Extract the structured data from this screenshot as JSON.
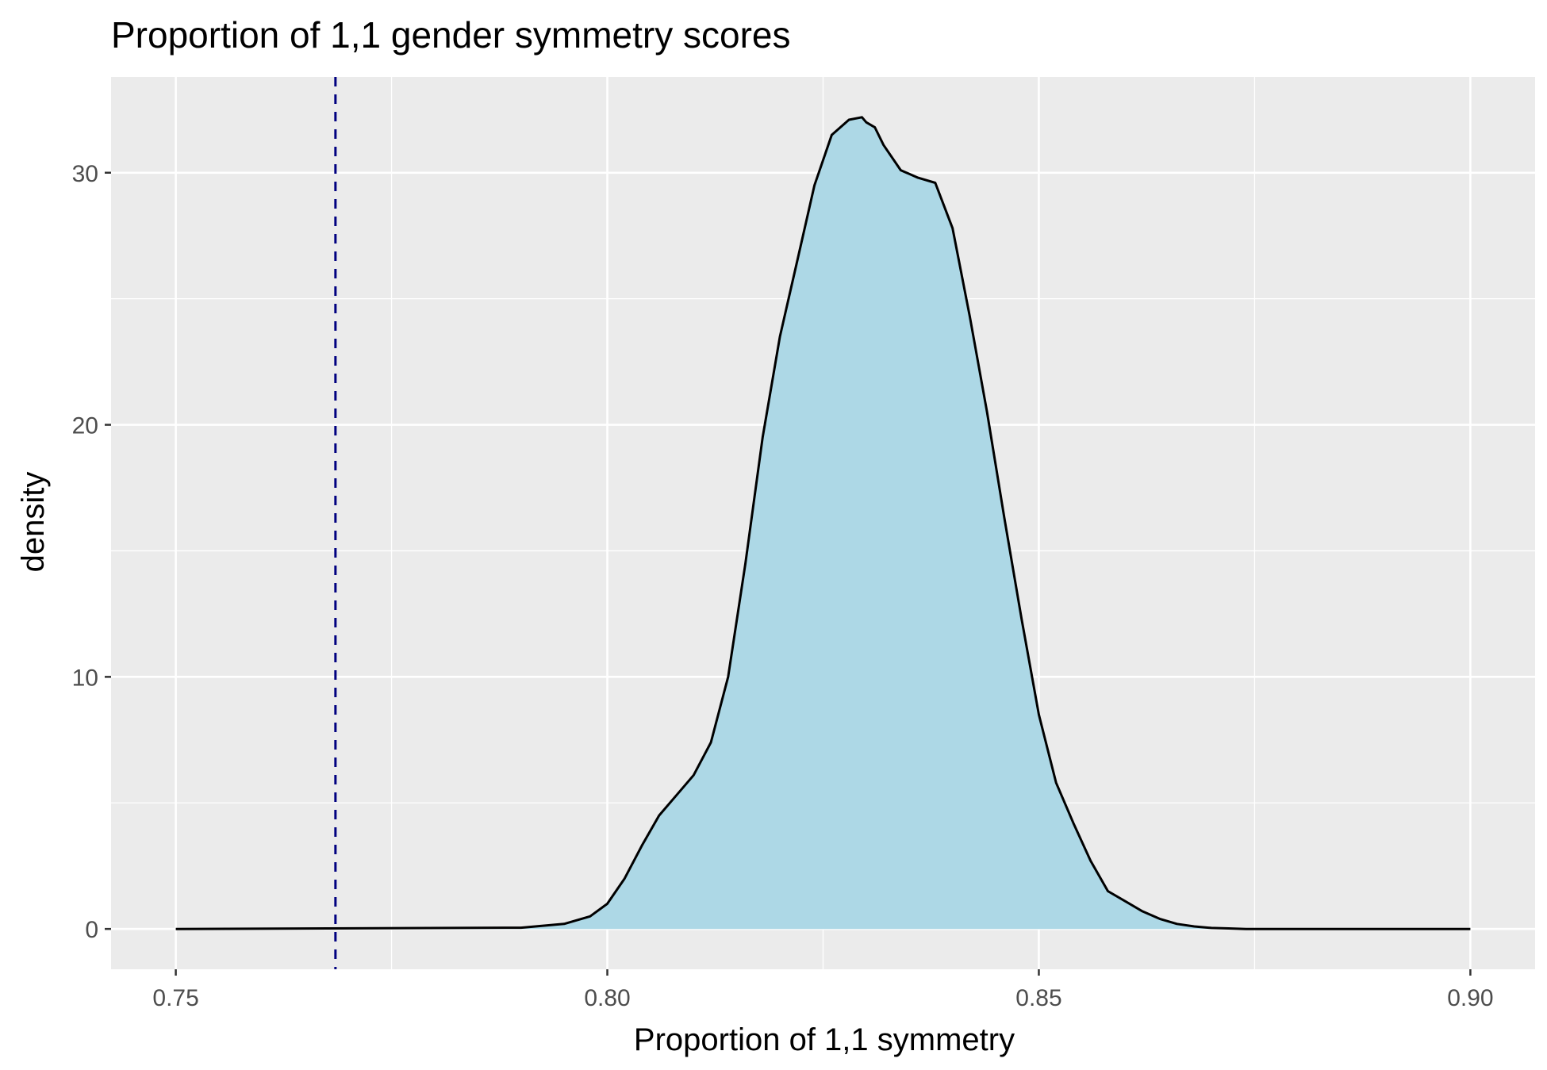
{
  "chart_data": {
    "type": "area",
    "title": "Proportion of 1,1 gender symmetry scores",
    "xlabel": "Proportion of 1,1 symmetry",
    "ylabel": "density",
    "xlim": [
      0.7425,
      0.9075
    ],
    "ylim": [
      -1.6,
      33.8
    ],
    "x_ticks": [
      0.75,
      0.8,
      0.85,
      0.9
    ],
    "x_tick_labels": [
      "0.75",
      "0.80",
      "0.85",
      "0.90"
    ],
    "y_ticks": [
      0,
      10,
      20,
      30
    ],
    "y_tick_labels": [
      "0",
      "10",
      "20",
      "30"
    ],
    "grid": true,
    "reference_line": {
      "x": 0.7685,
      "style": "dashed",
      "color": "#000080"
    },
    "fill_color": "#ADD8E6",
    "line_color": "#000000",
    "panel_background": "#EBEBEB",
    "series": [
      {
        "x": [
          0.75,
          0.79,
          0.795,
          0.798,
          0.8,
          0.802,
          0.804,
          0.806,
          0.808,
          0.81,
          0.812,
          0.814,
          0.816,
          0.818,
          0.82,
          0.822,
          0.824,
          0.826,
          0.828,
          0.8295,
          0.83,
          0.831,
          0.832,
          0.834,
          0.836,
          0.838,
          0.84,
          0.842,
          0.844,
          0.846,
          0.848,
          0.85,
          0.852,
          0.854,
          0.856,
          0.858,
          0.86,
          0.862,
          0.864,
          0.866,
          0.868,
          0.87,
          0.872,
          0.874,
          0.876,
          0.878,
          0.88,
          0.9
        ],
        "y": [
          0.0,
          0.05,
          0.2,
          0.5,
          1.0,
          2.0,
          3.3,
          4.5,
          5.3,
          6.1,
          7.4,
          10.0,
          14.5,
          19.5,
          23.5,
          26.5,
          29.5,
          31.5,
          32.1,
          32.2,
          32.0,
          31.8,
          31.1,
          30.1,
          29.8,
          29.6,
          27.8,
          24.3,
          20.5,
          16.3,
          12.3,
          8.5,
          5.8,
          4.2,
          2.7,
          1.5,
          1.1,
          0.7,
          0.4,
          0.2,
          0.1,
          0.04,
          0.02,
          0.0,
          0.0,
          0.0,
          0.0,
          0.0
        ]
      }
    ]
  }
}
